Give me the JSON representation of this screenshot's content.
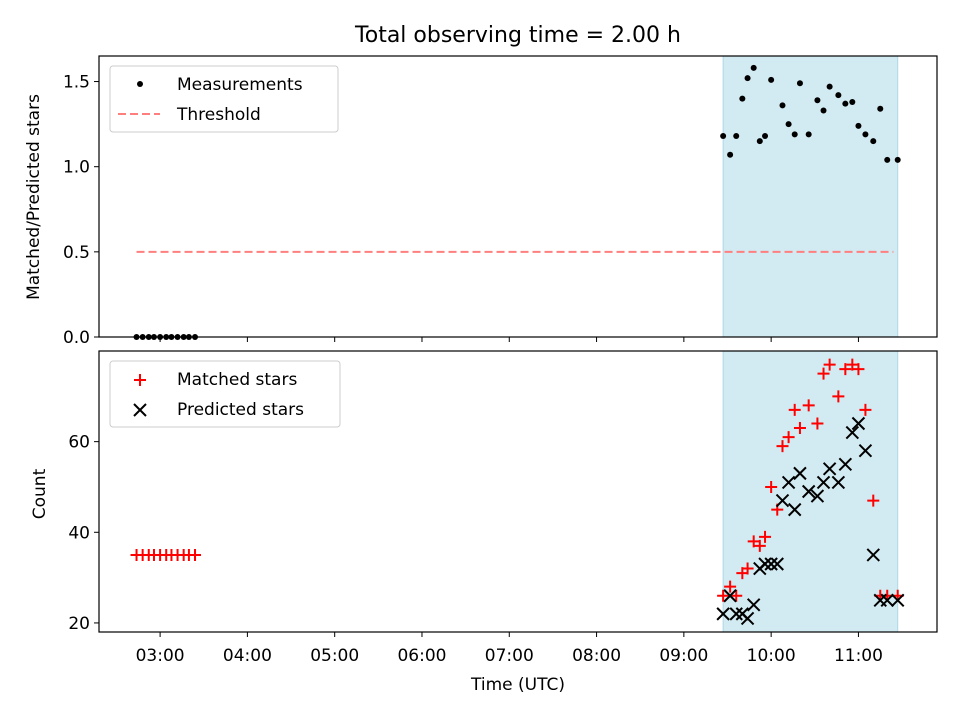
{
  "figure": {
    "title": "Total observing time = 2.00 h",
    "xlabel": "Time (UTC)",
    "x_tick_labels": [
      "03:00",
      "04:00",
      "05:00",
      "06:00",
      "07:00",
      "08:00",
      "09:00",
      "10:00",
      "11:00"
    ],
    "colors": {
      "measurements": "#000000",
      "threshold": "#ff7f7f",
      "matched": "#ff0000",
      "predicted": "#000000",
      "span": "#add8e6"
    }
  },
  "chart_data": [
    {
      "type": "scatter",
      "ylabel": "Matched/Predicted stars",
      "x_axis": "time (hours UTC)",
      "xlim": [
        2.3,
        11.9
      ],
      "ylim": [
        0.0,
        1.65
      ],
      "y_ticks": [
        0.0,
        0.5,
        1.0,
        1.5
      ],
      "y_tick_labels": [
        "0.0",
        "0.5",
        "1.0",
        "1.5"
      ],
      "shaded_span": [
        9.45,
        11.45
      ],
      "legend": {
        "placement": "upper-left",
        "entries": [
          {
            "label": "Measurements",
            "marker": "dot"
          },
          {
            "label": "Threshold",
            "marker": "dashed-line"
          }
        ]
      },
      "series": [
        {
          "name": "Measurements",
          "marker": "dot",
          "x": [
            2.73,
            2.8,
            2.87,
            2.93,
            3.0,
            3.07,
            3.13,
            3.2,
            3.27,
            3.33,
            3.4,
            9.45,
            9.53,
            9.6,
            9.67,
            9.73,
            9.8,
            9.87,
            9.93,
            10.0,
            10.13,
            10.2,
            10.27,
            10.33,
            10.43,
            10.53,
            10.6,
            10.67,
            10.77,
            10.85,
            10.93,
            11.0,
            11.08,
            11.17,
            11.25,
            11.33,
            11.45
          ],
          "y": [
            0,
            0,
            0,
            0,
            0,
            0,
            0,
            0,
            0,
            0,
            0,
            1.18,
            1.07,
            1.18,
            1.4,
            1.52,
            1.58,
            1.15,
            1.18,
            1.51,
            1.36,
            1.25,
            1.19,
            1.49,
            1.19,
            1.39,
            1.33,
            1.47,
            1.42,
            1.37,
            1.38,
            1.24,
            1.19,
            1.15,
            1.34,
            1.04,
            1.04
          ]
        },
        {
          "name": "Threshold",
          "marker": "dashed-line",
          "x": [
            2.73,
            11.4
          ],
          "y": [
            0.5,
            0.5
          ]
        }
      ]
    },
    {
      "type": "scatter",
      "ylabel": "Count",
      "x_axis": "time (hours UTC)",
      "xlim": [
        2.3,
        11.9
      ],
      "ylim": [
        18,
        80
      ],
      "y_ticks": [
        20,
        40,
        60
      ],
      "y_tick_labels": [
        "20",
        "40",
        "60"
      ],
      "shaded_span": [
        9.45,
        11.45
      ],
      "legend": {
        "placement": "upper-left",
        "entries": [
          {
            "label": "Matched stars",
            "marker": "plus"
          },
          {
            "label": "Predicted stars",
            "marker": "x"
          }
        ]
      },
      "series": [
        {
          "name": "Matched stars",
          "marker": "plus",
          "x": [
            2.73,
            2.8,
            2.87,
            2.93,
            3.0,
            3.07,
            3.13,
            3.2,
            3.27,
            3.33,
            3.4,
            9.45,
            9.53,
            9.6,
            9.67,
            9.73,
            9.8,
            9.87,
            9.93,
            10.0,
            10.07,
            10.13,
            10.2,
            10.27,
            10.33,
            10.43,
            10.53,
            10.6,
            10.67,
            10.77,
            10.85,
            10.93,
            11.0,
            11.08,
            11.17,
            11.25,
            11.33,
            11.45
          ],
          "y": [
            35,
            35,
            35,
            35,
            35,
            35,
            35,
            35,
            35,
            35,
            35,
            26,
            28,
            26,
            31,
            32,
            38,
            37,
            39,
            50,
            45,
            59,
            61,
            67,
            63,
            68,
            64,
            75,
            77,
            70,
            76,
            77,
            76,
            67,
            47,
            26,
            26,
            26
          ]
        },
        {
          "name": "Predicted stars",
          "marker": "x",
          "x": [
            9.45,
            9.53,
            9.6,
            9.67,
            9.73,
            9.8,
            9.87,
            9.93,
            10.0,
            10.07,
            10.13,
            10.2,
            10.27,
            10.33,
            10.43,
            10.53,
            10.6,
            10.67,
            10.77,
            10.85,
            10.93,
            11.0,
            11.08,
            11.17,
            11.25,
            11.33,
            11.45
          ],
          "y": [
            22,
            26,
            22,
            22,
            21,
            24,
            32,
            33,
            33,
            33,
            47,
            51,
            45,
            53,
            49,
            48,
            51,
            54,
            51,
            55,
            62,
            64,
            58,
            35,
            25,
            25,
            25
          ]
        }
      ]
    }
  ]
}
